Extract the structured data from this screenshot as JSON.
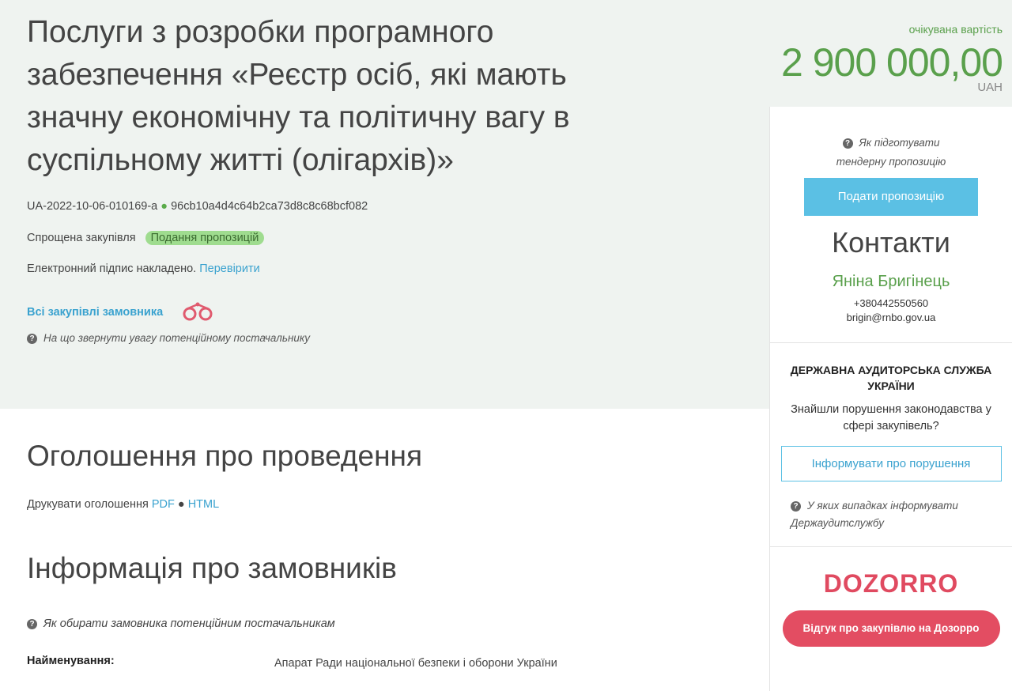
{
  "tender": {
    "title": "Послуги з розробки програмного забезпечення «Реєстр осіб, які мають значну економічну та політичну вагу в суспільному житті (олігархів)»",
    "id": "UA-2022-10-06-010169-a",
    "hash": "96cb10a4d4c64b2ca73d8c8c68bcf082",
    "type": "Спрощена закупівля",
    "status": "Подання пропозицій",
    "status_color": "#9fdc8f",
    "signature": "Електронний підпис накладено.",
    "verify": "Перевірити",
    "all_purchases": "Всі закупівлі замовника",
    "attention": "На що звернути увагу потенційному постачальнику"
  },
  "price": {
    "label": "очікувана вартість",
    "value": "2 900 000,00",
    "currency": "UAH"
  },
  "announcement": {
    "title": "Оголошення про проведення",
    "print": "Друкувати оголошення",
    "pdf": "PDF",
    "html": "HTML"
  },
  "customers": {
    "title": "Інформація про замовників",
    "help": "Як обирати замовника потенційним постачальникам",
    "name_label": "Найменування:",
    "name_value": "Апарат Ради національної безпеки і оборони України"
  },
  "sidebar": {
    "prepare_help": "Як підготувати тендерну пропозицію",
    "submit": "Подати пропозицію",
    "contacts_title": "Контакти",
    "contact_name": "Яніна Бригінець",
    "phone": "+380442550560",
    "email": "brigin@rnbo.gov.ua",
    "audit_title": "ДЕРЖАВНА АУДИТОРСЬКА СЛУЖБА УКРАЇНИ",
    "audit_text": "Знайшли порушення законодавства у сфері закупівель?",
    "audit_button": "Інформувати про порушення",
    "audit_help": "У яких випадках інформувати Держаудитслужбу",
    "dozorro_logo": "DOZORRO",
    "dozorro_button": "Відгук про закупівлю на Дозорро"
  }
}
